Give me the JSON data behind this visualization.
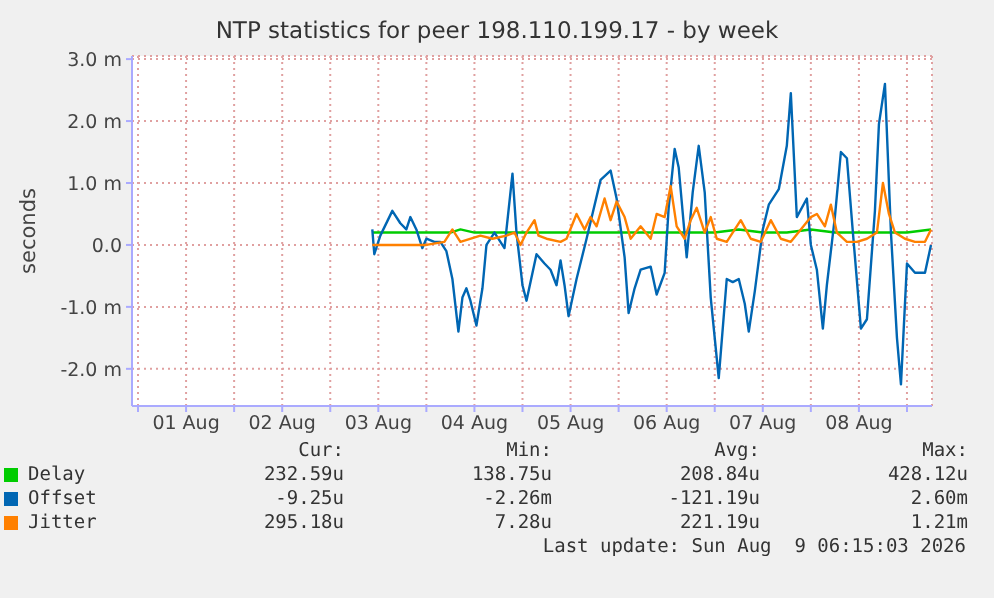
{
  "chart_data": {
    "type": "line",
    "title": "NTP statistics for peer 198.110.199.17 - by week",
    "ylabel": "seconds",
    "xlim": [
      "2026-07-31T22:30",
      "2026-08-09T06:15"
    ],
    "xticks": [
      {
        "value": "2026-08-01T00:00",
        "label": null
      },
      {
        "value": "2026-08-01T12:00",
        "label": "01 Aug"
      },
      {
        "value": "2026-08-02T00:00",
        "label": null
      },
      {
        "value": "2026-08-02T12:00",
        "label": "02 Aug"
      },
      {
        "value": "2026-08-03T00:00",
        "label": null
      },
      {
        "value": "2026-08-03T12:00",
        "label": "03 Aug"
      },
      {
        "value": "2026-08-04T00:00",
        "label": null
      },
      {
        "value": "2026-08-04T12:00",
        "label": "04 Aug"
      },
      {
        "value": "2026-08-05T00:00",
        "label": null
      },
      {
        "value": "2026-08-05T12:00",
        "label": "05 Aug"
      },
      {
        "value": "2026-08-06T00:00",
        "label": null
      },
      {
        "value": "2026-08-06T12:00",
        "label": "06 Aug"
      },
      {
        "value": "2026-08-07T00:00",
        "label": null
      },
      {
        "value": "2026-08-07T12:00",
        "label": "07 Aug"
      },
      {
        "value": "2026-08-08T00:00",
        "label": null
      },
      {
        "value": "2026-08-08T12:00",
        "label": "08 Aug"
      },
      {
        "value": "2026-08-09T00:00",
        "label": null
      }
    ],
    "ylim": [
      -2.6,
      3.05
    ],
    "yticks": [
      {
        "value": -2,
        "label": "-2.0 m"
      },
      {
        "value": -1,
        "label": "-1.0 m"
      },
      {
        "value": 0,
        "label": "0.0"
      },
      {
        "value": 1,
        "label": "1.0 m"
      },
      {
        "value": 2,
        "label": "2.0 m"
      },
      {
        "value": 3,
        "label": "3.0 m"
      }
    ],
    "grid": true,
    "legend": "bottom",
    "marker": "none",
    "line_style": "solid",
    "series": [
      {
        "name": "Delay",
        "color": "#00cc00",
        "x": [
          "2026-08-03T10:30",
          "2026-08-03T18:00",
          "2026-08-04T00:00",
          "2026-08-04T06:00",
          "2026-08-04T08:30",
          "2026-08-04T12:00",
          "2026-08-04T18:00",
          "2026-08-05T00:00",
          "2026-08-05T06:00",
          "2026-08-05T12:00",
          "2026-08-05T18:00",
          "2026-08-06T00:00",
          "2026-08-06T06:00",
          "2026-08-06T12:00",
          "2026-08-06T18:00",
          "2026-08-07T00:00",
          "2026-08-07T06:00",
          "2026-08-07T12:00",
          "2026-08-07T18:00",
          "2026-08-08T00:00",
          "2026-08-08T06:00",
          "2026-08-08T12:00",
          "2026-08-08T18:00",
          "2026-08-09T00:00",
          "2026-08-09T06:00"
        ],
        "values": [
          0.2,
          0.2,
          0.2,
          0.2,
          0.25,
          0.2,
          0.2,
          0.2,
          0.2,
          0.2,
          0.2,
          0.2,
          0.2,
          0.2,
          0.2,
          0.2,
          0.25,
          0.2,
          0.2,
          0.25,
          0.2,
          0.2,
          0.2,
          0.2,
          0.25
        ]
      },
      {
        "name": "Offset",
        "color": "#0066b3",
        "x": [
          "2026-08-03T10:30",
          "2026-08-03T11:00",
          "2026-08-03T12:30",
          "2026-08-03T15:30",
          "2026-08-03T17:30",
          "2026-08-03T19:00",
          "2026-08-03T20:00",
          "2026-08-03T21:30",
          "2026-08-03T23:00",
          "2026-08-04T00:00",
          "2026-08-04T02:00",
          "2026-08-04T03:30",
          "2026-08-04T05:00",
          "2026-08-04T06:30",
          "2026-08-04T08:00",
          "2026-08-04T09:00",
          "2026-08-04T10:00",
          "2026-08-04T11:00",
          "2026-08-04T12:30",
          "2026-08-04T14:00",
          "2026-08-04T15:00",
          "2026-08-04T17:00",
          "2026-08-04T19:30",
          "2026-08-04T21:30",
          "2026-08-04T22:30",
          "2026-08-05T00:00",
          "2026-08-05T01:00",
          "2026-08-05T03:30",
          "2026-08-05T05:30",
          "2026-08-05T07:00",
          "2026-08-05T08:30",
          "2026-08-05T09:30",
          "2026-08-05T10:30",
          "2026-08-05T11:30",
          "2026-08-05T13:30",
          "2026-08-05T16:00",
          "2026-08-05T19:30",
          "2026-08-05T22:00",
          "2026-08-05T23:30",
          "2026-08-06T01:30",
          "2026-08-06T02:30",
          "2026-08-06T04:00",
          "2026-08-06T05:30",
          "2026-08-06T08:00",
          "2026-08-06T09:30",
          "2026-08-06T11:30",
          "2026-08-06T12:30",
          "2026-08-06T14:00",
          "2026-08-06T15:00",
          "2026-08-06T17:00",
          "2026-08-06T18:30",
          "2026-08-06T20:00",
          "2026-08-06T21:30",
          "2026-08-06T23:00",
          "2026-08-07T01:00",
          "2026-08-07T03:00",
          "2026-08-07T04:30",
          "2026-08-07T06:00",
          "2026-08-07T07:30",
          "2026-08-07T08:30",
          "2026-08-07T10:00",
          "2026-08-07T12:00",
          "2026-08-07T13:30",
          "2026-08-07T16:00",
          "2026-08-07T18:00",
          "2026-08-07T19:00",
          "2026-08-07T20:30",
          "2026-08-07T23:00",
          "2026-08-08T00:00",
          "2026-08-08T01:30",
          "2026-08-08T03:00",
          "2026-08-08T04:00",
          "2026-08-08T06:00",
          "2026-08-08T07:30",
          "2026-08-08T09:00",
          "2026-08-08T10:30",
          "2026-08-08T12:30",
          "2026-08-08T14:00",
          "2026-08-08T16:00",
          "2026-08-08T17:00",
          "2026-08-08T18:30",
          "2026-08-08T20:00",
          "2026-08-08T21:30",
          "2026-08-08T22:30",
          "2026-08-09T00:00",
          "2026-08-09T02:00",
          "2026-08-09T04:30",
          "2026-08-09T06:00"
        ],
        "values": [
          0.25,
          -0.15,
          0.15,
          0.55,
          0.35,
          0.25,
          0.45,
          0.25,
          -0.05,
          0.1,
          0.05,
          0.05,
          -0.1,
          -0.55,
          -1.4,
          -0.85,
          -0.7,
          -0.9,
          -1.3,
          -0.7,
          0,
          0.2,
          -0.05,
          1.15,
          0.2,
          -0.65,
          -0.9,
          -0.15,
          -0.3,
          -0.4,
          -0.65,
          -0.25,
          -0.65,
          -1.15,
          -0.55,
          0.1,
          1.05,
          1.2,
          0.75,
          -0.2,
          -1.1,
          -0.7,
          -0.4,
          -0.35,
          -0.8,
          -0.45,
          0.6,
          1.55,
          1.25,
          -0.2,
          0.85,
          1.6,
          0.85,
          -0.85,
          -2.15,
          -0.55,
          -0.6,
          -0.55,
          -0.95,
          -1.4,
          -0.75,
          0.25,
          0.65,
          0.9,
          1.6,
          2.45,
          0.45,
          0.75,
          0,
          -0.4,
          -1.35,
          -0.65,
          0.45,
          1.5,
          1.4,
          0.2,
          -1.35,
          -1.2,
          0.55,
          1.95,
          2.6,
          0.2,
          -1.5,
          -2.25,
          -0.3,
          -0.45,
          -0.45,
          0
        ]
      },
      {
        "name": "Jitter",
        "color": "#ff8000",
        "x": [
          "2026-08-03T10:30",
          "2026-08-03T17:30",
          "2026-08-04T00:00",
          "2026-08-04T04:30",
          "2026-08-04T06:30",
          "2026-08-04T08:30",
          "2026-08-04T13:30",
          "2026-08-04T16:30",
          "2026-08-04T20:00",
          "2026-08-04T22:00",
          "2026-08-04T23:30",
          "2026-08-05T01:00",
          "2026-08-05T03:00",
          "2026-08-05T04:00",
          "2026-08-05T06:00",
          "2026-08-05T09:30",
          "2026-08-05T11:00",
          "2026-08-05T13:30",
          "2026-08-05T15:30",
          "2026-08-05T17:00",
          "2026-08-05T18:30",
          "2026-08-05T20:30",
          "2026-08-05T22:00",
          "2026-08-05T23:30",
          "2026-08-06T01:30",
          "2026-08-06T03:00",
          "2026-08-06T05:30",
          "2026-08-06T08:00",
          "2026-08-06T09:30",
          "2026-08-06T11:30",
          "2026-08-06T13:00",
          "2026-08-06T14:30",
          "2026-08-06T16:30",
          "2026-08-06T18:00",
          "2026-08-06T19:30",
          "2026-08-06T21:30",
          "2026-08-06T23:00",
          "2026-08-07T00:30",
          "2026-08-07T03:00",
          "2026-08-07T06:30",
          "2026-08-07T09:00",
          "2026-08-07T11:30",
          "2026-08-07T14:00",
          "2026-08-07T16:30",
          "2026-08-07T19:00",
          "2026-08-07T21:30",
          "2026-08-08T00:00",
          "2026-08-08T01:30",
          "2026-08-08T03:30",
          "2026-08-08T05:00",
          "2026-08-08T06:30",
          "2026-08-08T09:00",
          "2026-08-08T11:30",
          "2026-08-08T14:00",
          "2026-08-08T16:30",
          "2026-08-08T18:00",
          "2026-08-08T19:30",
          "2026-08-08T21:00",
          "2026-08-08T23:30",
          "2026-08-09T02:00",
          "2026-08-09T04:30",
          "2026-08-09T06:00"
        ],
        "values": [
          0,
          0,
          0,
          0.05,
          0.25,
          0.05,
          0.15,
          0.1,
          0.15,
          0.2,
          0,
          0.2,
          0.4,
          0.15,
          0.1,
          0.05,
          0.1,
          0.5,
          0.25,
          0.45,
          0.3,
          0.75,
          0.4,
          0.7,
          0.45,
          0.1,
          0.3,
          0.1,
          0.5,
          0.45,
          0.95,
          0.3,
          0.1,
          0.4,
          0.6,
          0.2,
          0.45,
          0.1,
          0.05,
          0.4,
          0.1,
          0.05,
          0.4,
          0.1,
          0.05,
          0.25,
          0.45,
          0.5,
          0.3,
          0.65,
          0.2,
          0.05,
          0.05,
          0.1,
          0.2,
          1,
          0.5,
          0.2,
          0.1,
          0.05,
          0.05,
          0.25
        ]
      }
    ],
    "annotations": [
      "Cur:",
      "Min:",
      "Avg:",
      "Max:",
      "232.59u",
      "138.75u",
      "208.84u",
      "428.12u",
      "-9.25u",
      "-2.26m",
      "-121.19u",
      "2.60m",
      "295.18u",
      "7.28u",
      "221.19u",
      "1.21m",
      "Last update: Sun Aug  9 06:15:03 2026"
    ]
  }
}
